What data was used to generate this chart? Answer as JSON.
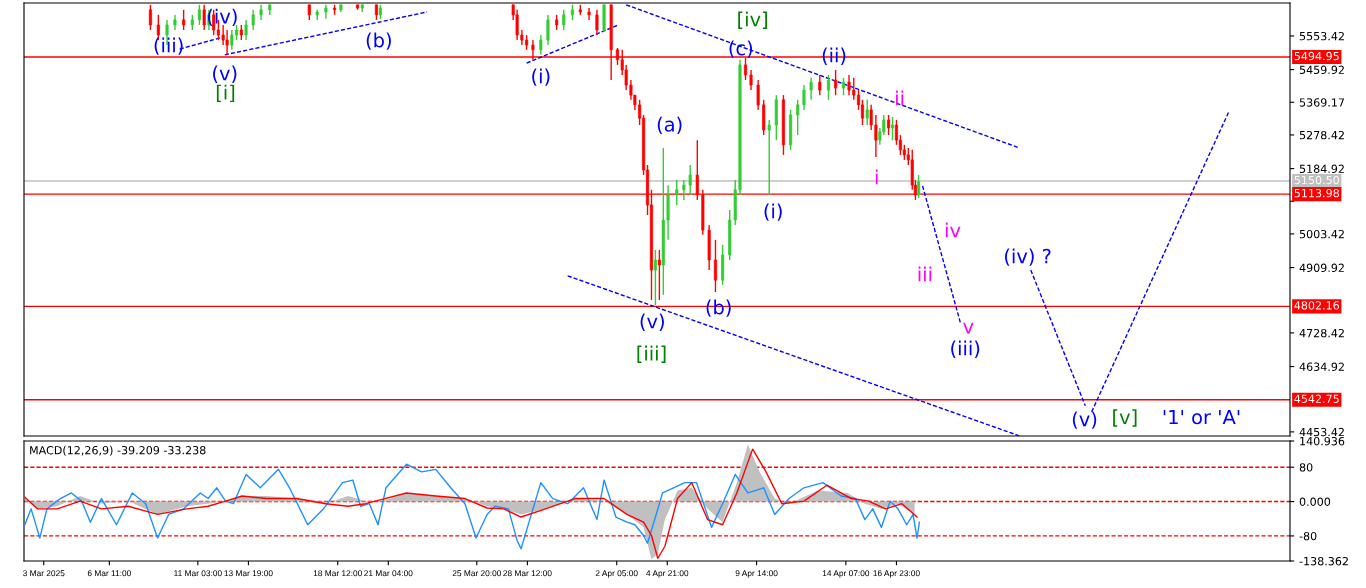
{
  "chart_data": [
    {
      "type": "candlestick",
      "x": [
        "2025-03-08T15:00",
        "2025-03-09T01:00",
        "2025-03-09T12:00",
        "2025-03-09T22:00",
        "2025-03-10T09:00",
        "2025-03-10T20:00",
        "2025-03-11T05:00",
        "2025-03-11T11:00",
        "2025-03-11T17:00",
        "2025-03-11T23:00",
        "2025-03-12T05:00",
        "2025-03-12T11:00",
        "2025-03-12T16:00",
        "2025-03-12T22:00",
        "2025-03-13T04:00",
        "2025-03-13T10:00",
        "2025-03-13T16:00",
        "2025-03-14T01:00",
        "2025-03-14T11:00",
        "2025-03-14T22:00",
        "2025-03-17T00:00",
        "2025-03-17T10:00",
        "2025-03-17T21:00",
        "2025-03-18T08:00",
        "2025-03-18T16:00",
        "2025-03-19T13:00",
        "2025-03-19T19:00",
        "2025-03-20T13:00",
        "2025-03-20T18:00",
        "2025-03-27T18:00",
        "2025-03-27T23:00",
        "2025-03-28T05:00",
        "2025-03-28T11:00",
        "2025-03-28T19:00",
        "2025-03-29T05:00",
        "2025-03-29T14:00",
        "2025-03-30T01:00",
        "2025-03-30T10:00",
        "2025-03-30T21:00",
        "2025-03-31T07:00",
        "2025-03-31T18:00",
        "2025-04-01T04:00",
        "2025-04-01T13:00",
        "2025-04-01T22:00",
        "2025-04-02T06:00",
        "2025-04-02T12:00",
        "2025-04-02T17:00",
        "2025-04-02T23:00",
        "2025-04-03T04:00",
        "2025-04-03T10:00",
        "2025-04-03T15:00",
        "2025-04-03T20:00",
        "2025-04-04T01:00",
        "2025-04-04T06:00",
        "2025-04-04T11:00",
        "2025-04-04T16:00",
        "2025-04-04T22:00",
        "2025-04-05T09:00",
        "2025-04-05T18:00",
        "2025-04-06T02:00",
        "2025-04-06T11:00",
        "2025-04-06T18:00",
        "2025-04-07T02:00",
        "2025-04-07T10:00",
        "2025-04-07T19:00",
        "2025-04-08T04:00",
        "2025-04-08T11:00",
        "2025-04-08T17:00",
        "2025-04-09T00:00",
        "2025-04-09T07:00",
        "2025-04-09T16:00",
        "2025-04-09T23:00",
        "2025-04-10T06:00",
        "2025-04-10T15:00",
        "2025-04-11T00:00",
        "2025-04-11T09:00",
        "2025-04-11T18:00",
        "2025-04-12T02:00",
        "2025-04-12T11:00",
        "2025-04-12T22:00",
        "2025-04-13T09:00",
        "2025-04-13T18:00",
        "2025-04-14T04:00",
        "2025-04-14T11:00",
        "2025-04-14T17:00",
        "2025-04-14T23:00",
        "2025-04-15T04:00",
        "2025-04-15T10:00",
        "2025-04-15T15:00",
        "2025-04-15T21:00",
        "2025-04-16T02:00",
        "2025-04-16T07:00",
        "2025-04-16T13:00",
        "2025-04-16T18:00",
        "2025-04-16T23:00",
        "2025-04-17T04:00",
        "2025-04-17T09:00",
        "2025-04-17T14:00",
        "2025-04-17T19:00",
        "2025-04-17T23:00",
        "2025-04-18T03:00"
      ],
      "ohlc": [
        [
          5626,
          5640,
          5570,
          5584
        ],
        [
          5584,
          5612,
          5542,
          5556
        ],
        [
          5556,
          5598,
          5528,
          5584
        ],
        [
          5584,
          5612,
          5570,
          5598
        ],
        [
          5598,
          5626,
          5570,
          5584
        ],
        [
          5584,
          5612,
          5570,
          5598
        ],
        [
          5598,
          5640,
          5584,
          5626
        ],
        [
          5626,
          5640,
          5570,
          5584
        ],
        [
          5584,
          5626,
          5570,
          5612
        ],
        [
          5612,
          5626,
          5556,
          5570
        ],
        [
          5570,
          5598,
          5542,
          5556
        ],
        [
          5556,
          5584,
          5528,
          5542
        ],
        [
          5542,
          5570,
          5501,
          5528
        ],
        [
          5528,
          5570,
          5515,
          5556
        ],
        [
          5556,
          5584,
          5542,
          5570
        ],
        [
          5570,
          5584,
          5542,
          5556
        ],
        [
          5556,
          5598,
          5542,
          5584
        ],
        [
          5584,
          5626,
          5570,
          5612
        ],
        [
          5612,
          5640,
          5598,
          5626
        ],
        [
          5626,
          5640,
          5612,
          5640
        ],
        [
          5640,
          5640,
          5598,
          5612
        ],
        [
          5612,
          5626,
          5598,
          5620
        ],
        [
          5620,
          5640,
          5601,
          5631
        ],
        [
          5631,
          5640,
          5612,
          5626
        ],
        [
          5626,
          5640,
          5620,
          5640
        ],
        [
          5640,
          5640,
          5626,
          5631
        ],
        [
          5631,
          5640,
          5620,
          5640
        ],
        [
          5640,
          5640,
          5598,
          5612
        ],
        [
          5612,
          5640,
          5601,
          5631
        ],
        [
          5640,
          5640,
          5598,
          5612
        ],
        [
          5612,
          5626,
          5542,
          5556
        ],
        [
          5556,
          5570,
          5528,
          5542
        ],
        [
          5542,
          5556,
          5515,
          5528
        ],
        [
          5528,
          5542,
          5487,
          5515
        ],
        [
          5515,
          5556,
          5501,
          5542
        ],
        [
          5542,
          5612,
          5528,
          5598
        ],
        [
          5598,
          5612,
          5570,
          5584
        ],
        [
          5584,
          5626,
          5570,
          5612
        ],
        [
          5612,
          5640,
          5598,
          5626
        ],
        [
          5626,
          5640,
          5612,
          5620
        ],
        [
          5620,
          5631,
          5598,
          5612
        ],
        [
          5612,
          5626,
          5556,
          5570
        ],
        [
          5570,
          5640,
          5565,
          5640
        ],
        [
          5640,
          5640,
          5431,
          5515
        ],
        [
          5515,
          5520,
          5473,
          5487
        ],
        [
          5487,
          5515,
          5445,
          5459
        ],
        [
          5459,
          5473,
          5403,
          5417
        ],
        [
          5417,
          5431,
          5376,
          5389
        ],
        [
          5389,
          5389,
          5348,
          5362
        ],
        [
          5362,
          5376,
          5306,
          5325
        ],
        [
          5325,
          5334,
          5167,
          5181
        ],
        [
          5181,
          5195,
          5056,
          5084
        ],
        [
          5084,
          5126,
          4820,
          4903
        ],
        [
          4903,
          4959,
          4806,
          4931
        ],
        [
          4931,
          4959,
          4820,
          4917
        ],
        [
          4917,
          5242,
          4834,
          5042
        ],
        [
          5042,
          5139,
          4987,
          5112
        ],
        [
          5112,
          5153,
          5084,
          5126
        ],
        [
          5126,
          5153,
          5098,
          5139
        ],
        [
          5139,
          5195,
          5112,
          5167
        ],
        [
          5167,
          5264,
          5098,
          5112
        ],
        [
          5112,
          5126,
          5001,
          5014
        ],
        [
          5014,
          5028,
          4903,
          4931
        ],
        [
          4931,
          4987,
          4842,
          4875
        ],
        [
          4875,
          4973,
          4862,
          4945
        ],
        [
          4945,
          5070,
          4931,
          5042
        ],
        [
          5042,
          5153,
          5028,
          5126
        ],
        [
          5126,
          5487,
          5112,
          5473
        ],
        [
          5473,
          5492,
          5431,
          5445
        ],
        [
          5445,
          5459,
          5403,
          5417
        ],
        [
          5417,
          5431,
          5348,
          5362
        ],
        [
          5362,
          5376,
          5278,
          5292
        ],
        [
          5292,
          5320,
          5112,
          5306
        ],
        [
          5306,
          5389,
          5264,
          5376
        ],
        [
          5376,
          5389,
          5223,
          5251
        ],
        [
          5251,
          5348,
          5237,
          5334
        ],
        [
          5334,
          5376,
          5278,
          5362
        ],
        [
          5362,
          5417,
          5348,
          5403
        ],
        [
          5403,
          5437,
          5376,
          5425
        ],
        [
          5425,
          5445,
          5389,
          5403
        ],
        [
          5403,
          5445,
          5376,
          5431
        ],
        [
          5431,
          5459,
          5389,
          5409
        ],
        [
          5409,
          5437,
          5389,
          5425
        ],
        [
          5425,
          5445,
          5389,
          5403
        ],
        [
          5403,
          5437,
          5376,
          5389
        ],
        [
          5389,
          5403,
          5348,
          5362
        ],
        [
          5362,
          5376,
          5306,
          5325
        ],
        [
          5325,
          5376,
          5306,
          5348
        ],
        [
          5348,
          5362,
          5292,
          5306
        ],
        [
          5306,
          5334,
          5217,
          5264
        ],
        [
          5264,
          5298,
          5251,
          5287
        ],
        [
          5287,
          5334,
          5278,
          5320
        ],
        [
          5320,
          5334,
          5278,
          5298
        ],
        [
          5298,
          5328,
          5264,
          5306
        ],
        [
          5306,
          5320,
          5251,
          5264
        ],
        [
          5264,
          5278,
          5223,
          5237
        ],
        [
          5237,
          5251,
          5209,
          5223
        ],
        [
          5223,
          5242,
          5195,
          5209
        ],
        [
          5209,
          5237,
          5126,
          5139
        ],
        [
          5139,
          5153,
          5098,
          5112
        ],
        [
          5112,
          5167,
          5103,
          5148
        ]
      ],
      "colors": [
        "#ff0000",
        "#ff0000",
        "#32cd32",
        "#32cd32",
        "#ff0000",
        "#32cd32",
        "#32cd32",
        "#ff0000",
        "#32cd32",
        "#ff0000",
        "#ff0000",
        "#ff0000",
        "#ff0000",
        "#32cd32",
        "#32cd32",
        "#ff0000",
        "#32cd32",
        "#32cd32",
        "#32cd32",
        "#32cd32",
        "#ff0000",
        "#32cd32",
        "#32cd32",
        "#ff0000",
        "#32cd32",
        "#ff0000",
        "#32cd32",
        "#ff0000",
        "#32cd32",
        "#ff0000",
        "#ff0000",
        "#ff0000",
        "#ff0000",
        "#ff0000",
        "#32cd32",
        "#32cd32",
        "#ff0000",
        "#32cd32",
        "#32cd32",
        "#ff0000",
        "#ff0000",
        "#ff0000",
        "#32cd32",
        "#ff0000",
        "#ff0000",
        "#ff0000",
        "#ff0000",
        "#ff0000",
        "#ff0000",
        "#ff0000",
        "#ff0000",
        "#ff0000",
        "#ff0000",
        "#32cd32",
        "#ff0000",
        "#32cd32",
        "#32cd32",
        "#32cd32",
        "#32cd32",
        "#32cd32",
        "#ff0000",
        "#ff0000",
        "#ff0000",
        "#ff0000",
        "#32cd32",
        "#32cd32",
        "#32cd32",
        "#32cd32",
        "#ff0000",
        "#ff0000",
        "#ff0000",
        "#ff0000",
        "#32cd32",
        "#32cd32",
        "#ff0000",
        "#32cd32",
        "#32cd32",
        "#32cd32",
        "#32cd32",
        "#ff0000",
        "#32cd32",
        "#ff0000",
        "#32cd32",
        "#ff0000",
        "#ff0000",
        "#ff0000",
        "#ff0000",
        "#32cd32",
        "#ff0000",
        "#ff0000",
        "#32cd32",
        "#32cd32",
        "#ff0000",
        "#32cd32",
        "#ff0000",
        "#ff0000",
        "#ff0000",
        "#ff0000",
        "#ff0000",
        "#ff0000",
        "#32cd32"
      ],
      "line_style": "dashed",
      "series": [
        {
          "type": "line",
          "color": "#0000ff",
          "x": [
            "2025-03-10T04:00",
            "2025-03-12T07:00"
          ],
          "values": [
            5517,
            5548
          ]
        },
        {
          "type": "line",
          "color": "#0000ff",
          "x": [
            "2025-03-12T13:00",
            "2025-03-23T05:00"
          ],
          "values": [
            5501,
            5620
          ]
        },
        {
          "type": "line",
          "color": "#0000ff",
          "x": [
            "2025-03-28T11:00",
            "2025-04-02T07:00"
          ],
          "values": [
            5478,
            5584
          ]
        },
        {
          "type": "line",
          "color": "#0000ff",
          "x": [
            "2025-04-02T17:00",
            "2025-04-23T11:00"
          ],
          "values": [
            5640,
            5242
          ]
        },
        {
          "type": "line",
          "color": "#0000ff",
          "x": [
            "2025-03-30T15:00",
            "2025-04-23T11:00"
          ],
          "values": [
            4887,
            4442
          ]
        },
        {
          "type": "line",
          "color": "#0000ff",
          "x": [
            "2025-04-18T08:00",
            "2025-04-20T08:00"
          ],
          "values": [
            5137,
            4756
          ]
        },
        {
          "type": "line",
          "color": "#0000ff",
          "x": [
            "2025-04-24T01:00",
            "2025-04-26T22:00"
          ],
          "values": [
            4903,
            4526
          ]
        },
        {
          "type": "line",
          "color": "#0000ff",
          "x": [
            "2025-04-27T06:00",
            "2025-05-04T12:00"
          ],
          "values": [
            4509,
            5345
          ]
        }
      ],
      "xlim": [
        "2025-03-01T23:00",
        "2025-05-07T17:00"
      ],
      "ylim": [
        4442,
        5645
      ],
      "yticks": [
        5553.42,
        5459.92,
        5369.17,
        5278.42,
        5184.92,
        {
          "value": 5094.17,
          "label": null
        },
        5003.42,
        4909.92,
        4728.42,
        4634.92,
        4453.42
      ],
      "tick_labels": "y",
      "ref_lines": [
        {
          "axis": "y",
          "value": 5494.95,
          "label": "5494.95",
          "color": "#ff0000"
        },
        {
          "axis": "y",
          "value": 5150.5,
          "label": "5150.50",
          "color": "#c0c0c0"
        },
        {
          "axis": "y",
          "value": 5113.98,
          "label": "5113.98",
          "color": "#ff0000"
        },
        {
          "axis": "y",
          "value": 4802.16,
          "label": "4802.16",
          "color": "#ff0000"
        },
        {
          "axis": "y",
          "value": 4542.75,
          "label": "4542.75",
          "color": "#ff0000"
        }
      ],
      "annotations": [
        "(iii)",
        "(iv)",
        "(v)",
        "[i]",
        "(b)",
        "(i)",
        "[iv]",
        "(c)",
        "(ii)",
        "(a)",
        "(i)",
        "(v)",
        "[iii]",
        "(b)",
        "ii",
        "i",
        "iv",
        "iii",
        "v",
        "(iii)",
        "(iv) ?",
        "(v)",
        "[v]",
        "'1' or 'A'"
      ]
    },
    {
      "type": "line",
      "title": "MACD(12,26,9) -39.209 -33.238",
      "series": [
        {
          "type": "area",
          "color": "#c0c0c0",
          "x": [
            "2025-03-02T00:00",
            "2025-03-02T16:00",
            "2025-03-03T17:00",
            "2025-03-04T22:00",
            "2025-03-06T01:00",
            "2025-03-07T11:00",
            "2025-03-09T00:00",
            "2025-03-10T13:00",
            "2025-03-11T16:00",
            "2025-03-12T14:00",
            "2025-03-13T11:00",
            "2025-03-14T18:00",
            "2025-03-16T08:00",
            "2025-03-17T21:00",
            "2025-03-19T01:00",
            "2025-03-19T23:00",
            "2025-03-20T20:00",
            "2025-03-22T03:00",
            "2025-03-23T16:00",
            "2025-03-25T05:00",
            "2025-03-26T09:00",
            "2025-03-27T06:00",
            "2025-03-28T04:00",
            "2025-03-29T11:00",
            "2025-03-31T00:00",
            "2025-04-01T13:00",
            "2025-04-02T18:00",
            "2025-04-03T15:00",
            "2025-04-04T01:00",
            "2025-04-04T09:00",
            "2025-04-04T18:00",
            "2025-04-05T10:00",
            "2025-04-06T04:00",
            "2025-04-07T00:00",
            "2025-04-07T19:00",
            "2025-04-08T13:00",
            "2025-04-09T03:00",
            "2025-04-09T18:00",
            "2025-04-10T13:00",
            "2025-04-11T07:00",
            "2025-04-12T20:00",
            "2025-04-14T09:00",
            "2025-04-15T07:00",
            "2025-04-16T04:00",
            "2025-04-17T01:00",
            "2025-04-17T22:00"
          ],
          "values": [
            7,
            -17,
            -11,
            13,
            -5,
            1,
            -30,
            -11,
            -5,
            1,
            13,
            13,
            7,
            -5,
            13,
            1,
            1,
            20,
            13,
            7,
            -11,
            -17,
            -30,
            -17,
            7,
            1,
            -30,
            -60,
            -134,
            -122,
            -42,
            26,
            32,
            -17,
            -48,
            44,
            133,
            69,
            7,
            -5,
            26,
            20,
            -5,
            -17,
            -5,
            -30
          ]
        },
        {
          "type": "line",
          "color": "#1e90ff",
          "x": [
            "2025-03-02T00:00",
            "2025-03-02T08:00",
            "2025-03-02T19:00",
            "2025-03-03T04:00",
            "2025-03-03T21:00",
            "2025-03-04T11:00",
            "2025-03-05T00:00",
            "2025-03-05T11:00",
            "2025-03-06T01:00",
            "2025-03-06T20:00",
            "2025-03-07T16:00",
            "2025-03-08T09:00",
            "2025-03-09T00:00",
            "2025-03-09T14:00",
            "2025-03-10T09:00",
            "2025-03-11T06:00",
            "2025-03-11T16:00",
            "2025-03-12T03:00",
            "2025-03-12T14:00",
            "2025-03-13T00:00",
            "2025-03-13T16:00",
            "2025-03-14T10:00",
            "2025-03-15T09:00",
            "2025-03-15T23:00",
            "2025-03-16T22:00",
            "2025-03-17T18:00",
            "2025-03-18T18:00",
            "2025-03-19T07:00",
            "2025-03-19T17:00",
            "2025-03-20T04:00",
            "2025-03-20T15:00",
            "2025-03-21T01:00",
            "2025-03-22T03:00",
            "2025-03-22T22:00",
            "2025-03-23T16:00",
            "2025-03-24T11:00",
            "2025-03-25T05:00",
            "2025-03-25T19:00",
            "2025-03-26T09:00",
            "2025-03-26T19:00",
            "2025-03-27T12:00",
            "2025-03-27T23:00",
            "2025-03-28T04:00",
            "2025-03-28T15:00",
            "2025-03-29T05:00",
            "2025-03-29T20:00",
            "2025-03-30T15:00",
            "2025-03-31T11:00",
            "2025-04-01T04:00",
            "2025-04-01T13:00",
            "2025-04-02T04:00",
            "2025-04-02T18:00",
            "2025-04-03T04:00",
            "2025-04-03T15:00",
            "2025-04-03T20:00",
            "2025-04-04T07:00",
            "2025-04-04T15:00",
            "2025-04-05T05:00",
            "2025-04-05T19:00",
            "2025-04-06T10:00",
            "2025-04-07T05:00",
            "2025-04-07T19:00",
            "2025-04-08T11:00",
            "2025-04-09T03:00",
            "2025-04-09T23:00",
            "2025-04-10T13:00",
            "2025-04-11T07:00",
            "2025-04-12T02:00",
            "2025-04-13T02:00",
            "2025-04-14T01:00",
            "2025-04-14T19:00",
            "2025-04-15T07:00",
            "2025-04-15T17:00",
            "2025-04-16T04:00",
            "2025-04-16T15:00",
            "2025-04-17T01:00",
            "2025-04-17T12:00",
            "2025-04-17T20:00",
            "2025-04-18T01:00",
            "2025-04-18T04:00"
          ],
          "values": [
            -54,
            -17,
            -85,
            -17,
            7,
            20,
            1,
            -48,
            7,
            -54,
            20,
            -5,
            -85,
            -30,
            -17,
            20,
            7,
            32,
            1,
            -5,
            63,
            32,
            75,
            32,
            -54,
            -17,
            44,
            50,
            -11,
            -5,
            -54,
            32,
            87,
            69,
            75,
            32,
            -5,
            -85,
            -30,
            -11,
            -17,
            -91,
            -110,
            -42,
            44,
            7,
            -5,
            32,
            -42,
            50,
            -36,
            -48,
            -54,
            -79,
            -97,
            -30,
            20,
            32,
            44,
            44,
            -60,
            -5,
            63,
            20,
            32,
            -30,
            7,
            32,
            44,
            13,
            7,
            -42,
            -17,
            -60,
            1,
            -17,
            -54,
            -30,
            -85,
            -48
          ]
        },
        {
          "type": "line",
          "color": "#ff0000",
          "x": [
            "2025-03-02T00:00",
            "2025-03-02T16:00",
            "2025-03-03T17:00",
            "2025-03-04T22:00",
            "2025-03-06T01:00",
            "2025-03-07T11:00",
            "2025-03-09T00:00",
            "2025-03-10T13:00",
            "2025-03-11T16:00",
            "2025-03-12T14:00",
            "2025-03-13T11:00",
            "2025-03-14T18:00",
            "2025-03-16T08:00",
            "2025-03-17T21:00",
            "2025-03-19T01:00",
            "2025-03-19T23:00",
            "2025-03-20T20:00",
            "2025-03-22T03:00",
            "2025-03-23T16:00",
            "2025-03-25T05:00",
            "2025-03-26T09:00",
            "2025-03-27T06:00",
            "2025-03-28T04:00",
            "2025-03-29T11:00",
            "2025-03-31T00:00",
            "2025-04-01T13:00",
            "2025-04-02T18:00",
            "2025-04-03T15:00",
            "2025-04-04T01:00",
            "2025-04-04T09:00",
            "2025-04-04T18:00",
            "2025-04-05T10:00",
            "2025-04-06T04:00",
            "2025-04-07T00:00",
            "2025-04-07T19:00",
            "2025-04-08T13:00",
            "2025-04-09T09:00",
            "2025-04-10T02:00",
            "2025-04-10T22:00",
            "2025-04-12T02:00",
            "2025-04-13T07:00",
            "2025-04-14T14:00",
            "2025-04-15T12:00",
            "2025-04-16T09:00",
            "2025-04-17T06:00",
            "2025-04-18T01:00"
          ],
          "values": [
            10,
            -17,
            -17,
            1,
            -17,
            -11,
            -30,
            -17,
            -11,
            1,
            13,
            7,
            7,
            -5,
            -11,
            -5,
            5,
            20,
            13,
            7,
            -15,
            -17,
            -36,
            -17,
            7,
            7,
            -30,
            -48,
            -79,
            -132,
            -104,
            7,
            44,
            -42,
            -54,
            20,
            122,
            69,
            -5,
            1,
            38,
            7,
            1,
            -17,
            -5,
            -36
          ]
        }
      ],
      "xlim": [
        "2025-03-01T23:00",
        "2025-05-07T17:00"
      ],
      "xticks": [
        {
          "value": "2025-03-03T00:00",
          "label": "3 Mar 2025"
        },
        {
          "value": "2025-03-06T11:00",
          "label": "6 Mar 11:00"
        },
        {
          "value": "2025-03-11T03:00",
          "label": "11 Mar 03:00"
        },
        {
          "value": "2025-03-13T19:00",
          "label": "13 Mar 19:00"
        },
        {
          "value": "2025-03-18T12:00",
          "label": "18 Mar 12:00"
        },
        {
          "value": "2025-03-21T04:00",
          "label": "21 Mar 04:00"
        },
        {
          "value": "2025-03-25T20:00",
          "label": "25 Mar 20:00"
        },
        {
          "value": "2025-03-28T12:00",
          "label": "28 Mar 12:00"
        },
        {
          "value": "2025-04-02T05:00",
          "label": "2 Apr 05:00"
        },
        {
          "value": "2025-04-04T21:00",
          "label": "4 Apr 21:00"
        },
        {
          "value": "2025-04-09T14:00",
          "label": "9 Apr 14:00"
        },
        {
          "value": "2025-04-14T07:00",
          "label": "14 Apr 07:00"
        },
        {
          "value": "2025-04-16T23:00",
          "label": "16 Apr 23:00"
        }
      ],
      "ylim": [
        -138.362,
        140.936
      ],
      "yticks": [
        140.936,
        80,
        {
          "value": 0,
          "label": "0.000"
        },
        {
          "value": -80,
          "label": "-80"
        },
        -138.362
      ],
      "ref_lines": [
        {
          "axis": "y",
          "value": 80,
          "color": "#ff0000",
          "line_style": "dashed"
        },
        {
          "axis": "y",
          "value": 0,
          "color": "#ff0000",
          "line_style": "dashed"
        },
        {
          "axis": "y",
          "value": -80,
          "color": "#ff0000",
          "line_style": "dashed"
        }
      ]
    }
  ]
}
